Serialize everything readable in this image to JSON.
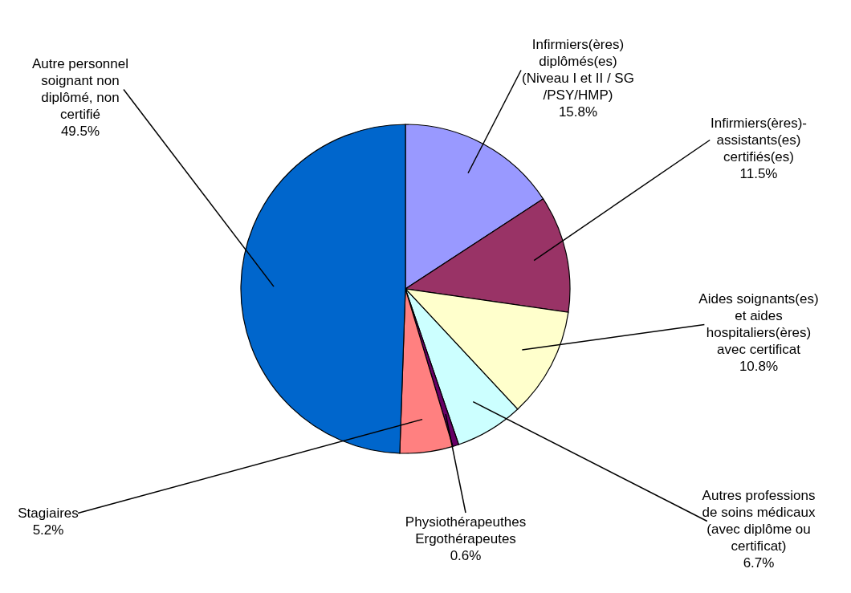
{
  "chart_data": {
    "type": "pie",
    "categories": [
      "Infirmiers(ères)\ndiplômés(es)\n(Niveau I et II / SG\n/PSY/HMP)",
      "Infirmiers(ères)-\nassistants(es)\ncertifiés(es)",
      "Aides soignants(es)\net aides\nhospitaliers(ères)\navec certificat",
      "Autres professions\nde soins médicaux\n(avec diplôme ou\ncertificat)",
      "Physiothérapeuthes\nErgothérapeutes",
      "Stagiaires",
      "Autre personnel\nsoignant non\ndiplômé, non\ncertifié"
    ],
    "values": [
      15.8,
      11.5,
      10.8,
      6.7,
      0.6,
      5.2,
      49.5
    ],
    "colors": [
      "#9999ff",
      "#993366",
      "#ffffcc",
      "#ccffff",
      "#660066",
      "#ff8080",
      "#0066cc"
    ],
    "value_labels": [
      "15.8%",
      "11.5%",
      "10.8%",
      "6.7%",
      "0.6%",
      "5.2%",
      "49.5%"
    ]
  }
}
